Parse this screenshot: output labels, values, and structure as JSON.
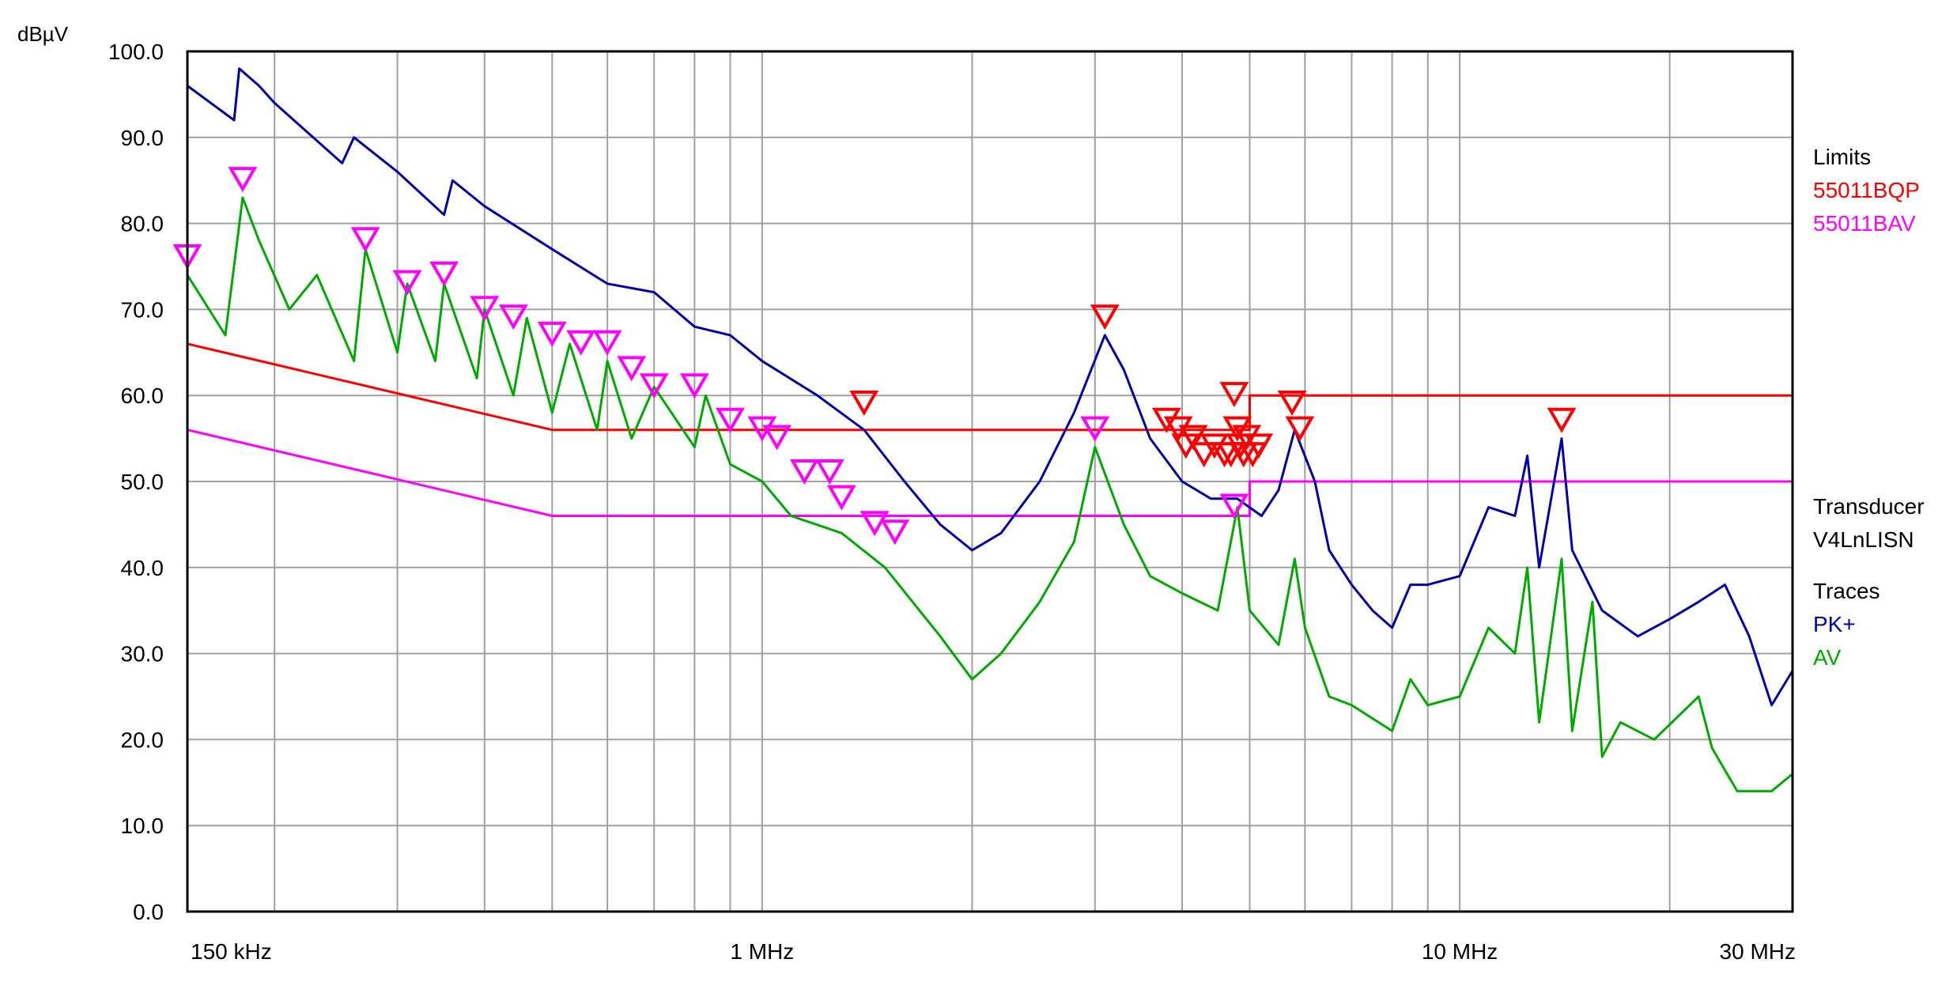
{
  "chart_data": {
    "type": "line",
    "ylabel": "dBµV",
    "x_scale": "log",
    "xlim_mhz": [
      0.15,
      30
    ],
    "ylim": [
      0,
      100
    ],
    "grid": true,
    "y_ticks": [
      {
        "value": 0,
        "label": "0.0"
      },
      {
        "value": 10,
        "label": "10.0"
      },
      {
        "value": 20,
        "label": "20.0"
      },
      {
        "value": 30,
        "label": "30.0"
      },
      {
        "value": 40,
        "label": "40.0"
      },
      {
        "value": 50,
        "label": "50.0"
      },
      {
        "value": 60,
        "label": "60.0"
      },
      {
        "value": 70,
        "label": "70.0"
      },
      {
        "value": 80,
        "label": "80.0"
      },
      {
        "value": 90,
        "label": "90.0"
      },
      {
        "value": 100,
        "label": "100.0"
      }
    ],
    "x_tick_labels": [
      {
        "mhz": 0.15,
        "label": "150 kHz"
      },
      {
        "mhz": 1,
        "label": "1 MHz"
      },
      {
        "mhz": 10,
        "label": "10 MHz"
      },
      {
        "mhz": 30,
        "label": "30 MHz"
      }
    ],
    "legend": {
      "limits_title": "Limits",
      "limits": [
        {
          "name": "55011BQP",
          "color": "#ff0000"
        },
        {
          "name": "55011BAV",
          "color": "#ff00ff"
        }
      ],
      "transducer_title": "Transducer",
      "transducer": "V4LnLISN",
      "traces_title": "Traces",
      "traces": [
        {
          "name": "PK+",
          "color": "#0000aa"
        },
        {
          "name": "AV",
          "color": "#00aa00"
        }
      ]
    },
    "limit_lines": [
      {
        "name": "55011BQP",
        "color": "#ff0000",
        "points": [
          [
            0.15,
            66
          ],
          [
            0.5,
            56
          ],
          [
            5,
            56
          ],
          [
            5,
            60
          ],
          [
            30,
            60
          ]
        ]
      },
      {
        "name": "55011BAV",
        "color": "#ff00ff",
        "points": [
          [
            0.15,
            56
          ],
          [
            0.5,
            46
          ],
          [
            5,
            46
          ],
          [
            5,
            50
          ],
          [
            30,
            50
          ]
        ]
      }
    ],
    "series": [
      {
        "name": "PK+",
        "color": "#0000aa",
        "points": [
          [
            0.15,
            96
          ],
          [
            0.175,
            92
          ],
          [
            0.178,
            98
          ],
          [
            0.19,
            96
          ],
          [
            0.2,
            94
          ],
          [
            0.25,
            87
          ],
          [
            0.26,
            90
          ],
          [
            0.3,
            86
          ],
          [
            0.35,
            81
          ],
          [
            0.36,
            85
          ],
          [
            0.4,
            82
          ],
          [
            0.5,
            77
          ],
          [
            0.6,
            73
          ],
          [
            0.7,
            72
          ],
          [
            0.8,
            68
          ],
          [
            0.9,
            67
          ],
          [
            1.0,
            64
          ],
          [
            1.2,
            60
          ],
          [
            1.4,
            56
          ],
          [
            1.6,
            50
          ],
          [
            1.8,
            45
          ],
          [
            2.0,
            42
          ],
          [
            2.2,
            44
          ],
          [
            2.5,
            50
          ],
          [
            2.8,
            58
          ],
          [
            3.1,
            67
          ],
          [
            3.3,
            63
          ],
          [
            3.6,
            55
          ],
          [
            4.0,
            50
          ],
          [
            4.4,
            48
          ],
          [
            4.8,
            48
          ],
          [
            5.2,
            46
          ],
          [
            5.5,
            49
          ],
          [
            5.8,
            56
          ],
          [
            6.2,
            50
          ],
          [
            6.5,
            42
          ],
          [
            7.0,
            38
          ],
          [
            7.5,
            35
          ],
          [
            8.0,
            33
          ],
          [
            8.5,
            38
          ],
          [
            9.0,
            38
          ],
          [
            10.0,
            39
          ],
          [
            11.0,
            47
          ],
          [
            12.0,
            46
          ],
          [
            12.5,
            53
          ],
          [
            13.0,
            40
          ],
          [
            14.0,
            55
          ],
          [
            14.5,
            42
          ],
          [
            16.0,
            35
          ],
          [
            18.0,
            32
          ],
          [
            20.0,
            34
          ],
          [
            22.0,
            36
          ],
          [
            24.0,
            38
          ],
          [
            26.0,
            32
          ],
          [
            28.0,
            24
          ],
          [
            30.0,
            28
          ]
        ]
      },
      {
        "name": "AV",
        "color": "#00aa00",
        "points": [
          [
            0.15,
            74
          ],
          [
            0.17,
            67
          ],
          [
            0.18,
            83
          ],
          [
            0.19,
            78
          ],
          [
            0.21,
            70
          ],
          [
            0.23,
            74
          ],
          [
            0.26,
            64
          ],
          [
            0.27,
            77
          ],
          [
            0.3,
            65
          ],
          [
            0.31,
            73
          ],
          [
            0.34,
            64
          ],
          [
            0.35,
            73
          ],
          [
            0.39,
            62
          ],
          [
            0.4,
            70
          ],
          [
            0.44,
            60
          ],
          [
            0.46,
            69
          ],
          [
            0.5,
            58
          ],
          [
            0.53,
            66
          ],
          [
            0.58,
            56
          ],
          [
            0.6,
            64
          ],
          [
            0.65,
            55
          ],
          [
            0.7,
            61
          ],
          [
            0.8,
            54
          ],
          [
            0.83,
            60
          ],
          [
            0.9,
            52
          ],
          [
            1.0,
            50
          ],
          [
            1.1,
            46
          ],
          [
            1.3,
            44
          ],
          [
            1.5,
            40
          ],
          [
            1.8,
            32
          ],
          [
            2.0,
            27
          ],
          [
            2.2,
            30
          ],
          [
            2.5,
            36
          ],
          [
            2.8,
            43
          ],
          [
            3.0,
            54
          ],
          [
            3.3,
            45
          ],
          [
            3.6,
            39
          ],
          [
            4.0,
            37
          ],
          [
            4.5,
            35
          ],
          [
            4.8,
            47
          ],
          [
            5.0,
            35
          ],
          [
            5.5,
            31
          ],
          [
            5.8,
            41
          ],
          [
            6.0,
            33
          ],
          [
            6.5,
            25
          ],
          [
            7.0,
            24
          ],
          [
            8.0,
            21
          ],
          [
            8.5,
            27
          ],
          [
            9.0,
            24
          ],
          [
            10.0,
            25
          ],
          [
            11.0,
            33
          ],
          [
            12.0,
            30
          ],
          [
            12.5,
            40
          ],
          [
            13.0,
            22
          ],
          [
            14.0,
            41
          ],
          [
            14.5,
            21
          ],
          [
            15.5,
            36
          ],
          [
            16.0,
            18
          ],
          [
            17.0,
            22
          ],
          [
            19.0,
            20
          ],
          [
            22.0,
            25
          ],
          [
            23.0,
            19
          ],
          [
            25.0,
            14
          ],
          [
            28.0,
            14
          ],
          [
            30.0,
            16
          ]
        ]
      }
    ],
    "qp_markers": [
      [
        1.4,
        58
      ],
      [
        3.1,
        68
      ],
      [
        3.8,
        56
      ],
      [
        3.95,
        55
      ],
      [
        4.05,
        53
      ],
      [
        4.15,
        54
      ],
      [
        4.3,
        52
      ],
      [
        4.45,
        53
      ],
      [
        4.6,
        52
      ],
      [
        4.7,
        52
      ],
      [
        4.75,
        59
      ],
      [
        4.8,
        55
      ],
      [
        4.85,
        53
      ],
      [
        4.9,
        52
      ],
      [
        4.95,
        54
      ],
      [
        5.05,
        52
      ],
      [
        5.15,
        53
      ],
      [
        5.75,
        58
      ],
      [
        5.9,
        55
      ],
      [
        14.0,
        56
      ]
    ],
    "av_markers": [
      [
        0.15,
        75
      ],
      [
        0.18,
        84
      ],
      [
        0.27,
        77
      ],
      [
        0.31,
        72
      ],
      [
        0.35,
        73
      ],
      [
        0.4,
        69
      ],
      [
        0.44,
        68
      ],
      [
        0.5,
        66
      ],
      [
        0.55,
        65
      ],
      [
        0.6,
        65
      ],
      [
        0.65,
        62
      ],
      [
        0.7,
        60
      ],
      [
        0.8,
        60
      ],
      [
        0.9,
        56
      ],
      [
        1.0,
        55
      ],
      [
        1.05,
        54
      ],
      [
        1.15,
        50
      ],
      [
        1.25,
        50
      ],
      [
        1.3,
        47
      ],
      [
        1.45,
        44
      ],
      [
        1.55,
        43
      ],
      [
        3.0,
        55
      ],
      [
        4.75,
        46
      ]
    ]
  }
}
